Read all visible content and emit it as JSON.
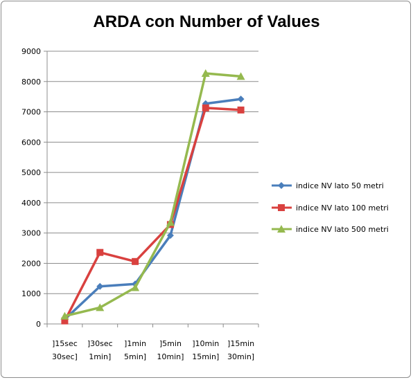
{
  "chart_data": {
    "type": "line",
    "title": "ARDA con Number of Values",
    "categories": [
      [
        "]15sec",
        "30sec]"
      ],
      [
        "]30sec",
        "1min]"
      ],
      [
        "]1min",
        "5min]"
      ],
      [
        "]5min",
        "10min]"
      ],
      [
        "]10min",
        "15min]"
      ],
      [
        "]15min",
        "30min]"
      ]
    ],
    "ylim": [
      0,
      9000
    ],
    "ytick_step": 1000,
    "grid": true,
    "legend_position": "right",
    "series": [
      {
        "name": "indice NV lato 50 metri",
        "values": [
          150,
          1240,
          1320,
          2920,
          7270,
          7420
        ],
        "color": "#4a7ebb",
        "marker": "diamond"
      },
      {
        "name": "indice NV lato 100 metri",
        "values": [
          100,
          2360,
          2060,
          3280,
          7130,
          7060
        ],
        "color": "#d9413f",
        "marker": "square"
      },
      {
        "name": "indice NV lato 500 metri",
        "values": [
          260,
          540,
          1200,
          3350,
          8270,
          8170
        ],
        "color": "#95b94f",
        "marker": "triangle"
      }
    ]
  }
}
